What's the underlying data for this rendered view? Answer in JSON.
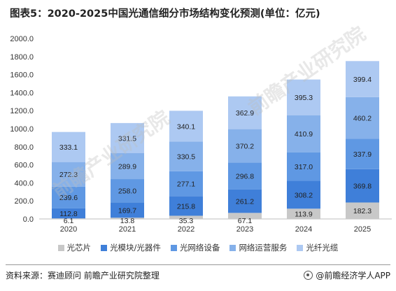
{
  "title": "图表5：2020-2025中国光通信细分市场结构变化预测(单位：亿元)",
  "source": "资料来源：赛迪顾问 前瞻产业研究院整理",
  "brand": "@前瞻经济学人APP",
  "watermark": "前瞻产业研究院",
  "colors": {
    "光芯片": "#c8c8c8",
    "光模块/光器件": "#3f7fd9",
    "光网络设备": "#5f98e3",
    "网络运营服务": "#86b1ea",
    "光纤光缆": "#adc9f2"
  },
  "chart_data": {
    "type": "bar",
    "stacked": true,
    "title": "图表5：2020-2025中国光通信细分市场结构变化预测(单位：亿元)",
    "xlabel": "",
    "ylabel": "",
    "ylim": [
      0,
      2000
    ],
    "yticks": [
      "0.0",
      "200.0",
      "400.0",
      "600.0",
      "800.0",
      "1000.0",
      "1200.0",
      "1400.0",
      "1600.0",
      "1800.0",
      "2000.0"
    ],
    "categories": [
      "2020",
      "2021",
      "2022",
      "2023",
      "2024",
      "2025"
    ],
    "legend_position": "bottom",
    "series": [
      {
        "name": "光芯片",
        "values": [
          6.1,
          13.8,
          35.3,
          67.1,
          113.9,
          182.3
        ]
      },
      {
        "name": "光模块/光器件",
        "values": [
          112.8,
          169.7,
          215.8,
          261.2,
          308.2,
          369.8
        ]
      },
      {
        "name": "光网络设备",
        "values": [
          239.6,
          258.0,
          277.1,
          296.8,
          317.0,
          337.9
        ]
      },
      {
        "name": "网络运营服务",
        "values": [
          272.3,
          289.9,
          330.5,
          370.2,
          410.9,
          460.2
        ]
      },
      {
        "name": "光纤光缆",
        "values": [
          333.1,
          331.5,
          340.1,
          362.9,
          395.3,
          399.4
        ]
      }
    ]
  }
}
